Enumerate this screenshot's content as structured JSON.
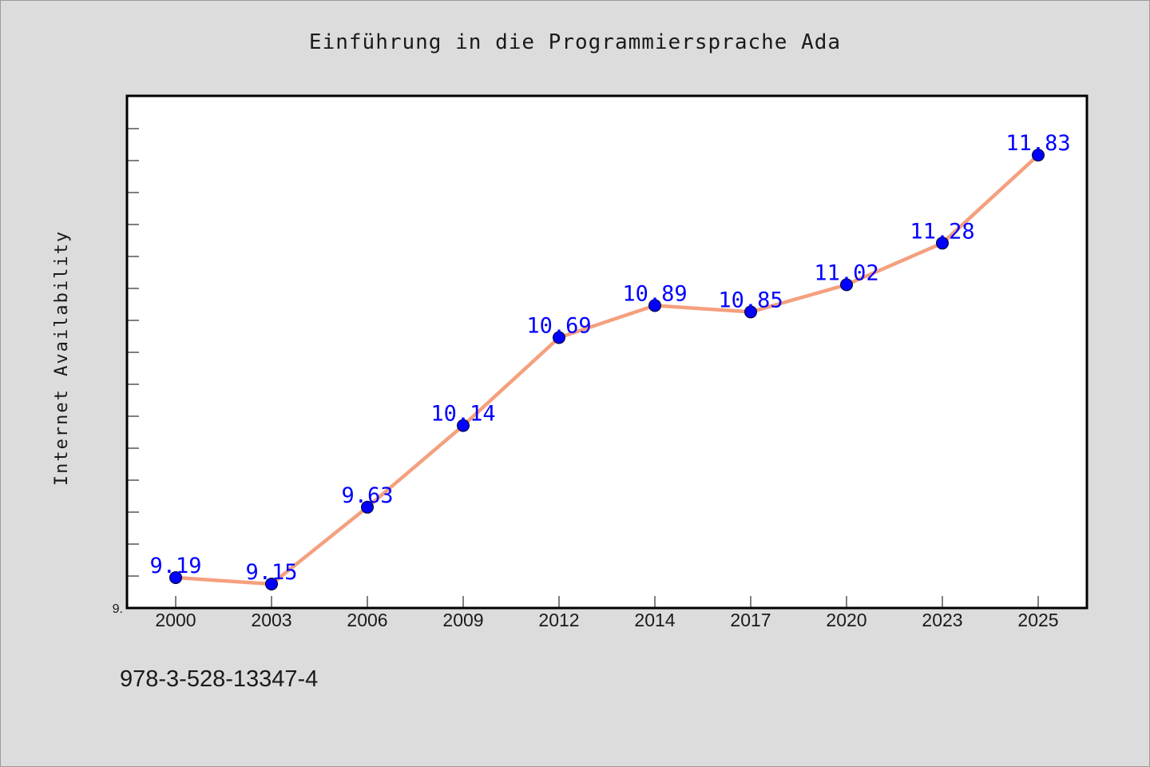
{
  "chart_data": {
    "type": "line",
    "title": "Einführung in die Programmiersprache Ada",
    "xlabel": "",
    "ylabel": "Internet Availability",
    "categories": [
      "2000",
      "2003",
      "2006",
      "2009",
      "2012",
      "2014",
      "2017",
      "2020",
      "2023",
      "2025"
    ],
    "series": [
      {
        "values": [
          9.19,
          9.15,
          9.63,
          10.14,
          10.69,
          10.89,
          10.85,
          11.02,
          11.28,
          11.83
        ],
        "data_labels": [
          "9.19",
          "9.15",
          "9.63",
          "10.14",
          "10.69",
          "10.89",
          "10.85",
          "11.02",
          "11.28",
          "11.83"
        ]
      }
    ],
    "y_tick_labels": [
      "9."
    ],
    "ylim": [
      9.0,
      12.2
    ],
    "grid": false,
    "legend": "none",
    "colors": {
      "line": "#f4a07e",
      "marker": "#0000ff",
      "data_label": "#0000ff",
      "background": "#dcdcdc",
      "plot_background": "#ffffff"
    }
  },
  "footer": {
    "code": "978-3-528-13347-4"
  }
}
